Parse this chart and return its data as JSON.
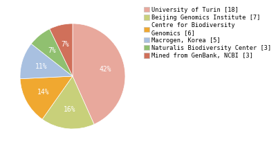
{
  "labels": [
    "University of Turin [18]",
    "Beijing Genomics Institute [7]",
    "Centre for Biodiversity\nGenomics [6]",
    "Macrogen, Korea [5]",
    "Naturalis Biodiversity Center [3]",
    "Mined from GenBank, NCBI [3]"
  ],
  "values": [
    42,
    16,
    14,
    11,
    7,
    7
  ],
  "colors": [
    "#e8a89c",
    "#c8d07a",
    "#f0a830",
    "#a8c0e0",
    "#90c070",
    "#d0705a"
  ],
  "pct_labels": [
    "42%",
    "16%",
    "14%",
    "11%",
    "7%",
    "7%"
  ],
  "legend_labels": [
    "University of Turin [18]",
    "Beijing Genomics Institute [7]",
    "Centre for Biodiversity\nGenomics [6]",
    "Macrogen, Korea [5]",
    "Naturalis Biodiversity Center [3]",
    "Mined from GenBank, NCBI [3]"
  ],
  "background_color": "#ffffff",
  "pct_fontsize": 7.0,
  "legend_fontsize": 6.2
}
